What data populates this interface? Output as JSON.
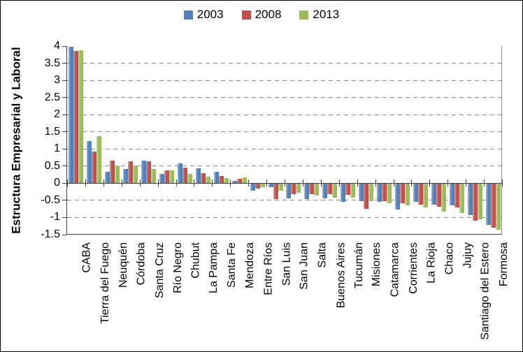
{
  "figure": {
    "background": "#ffffff",
    "border_color": "#000000"
  },
  "legend": {
    "position": "top-center",
    "items": [
      {
        "label": "2003",
        "color": "#4F81BD"
      },
      {
        "label": "2008",
        "color": "#C0504D"
      },
      {
        "label": "2013",
        "color": "#9BBB59"
      }
    ]
  },
  "y_axis": {
    "title": "Estructura Empresarial y Laboral",
    "tick_labels": [
      "4",
      "3.5",
      "3",
      "2.5",
      "2",
      "1.5",
      "1",
      "0.5",
      "0",
      "-0.5",
      "-1",
      "-1.5"
    ]
  },
  "chart_data": {
    "type": "bar",
    "title": "",
    "xlabel": "",
    "ylabel": "Estructura Empresarial y Laboral",
    "ylim": [
      -1.5,
      4
    ],
    "ytick_step": 0.5,
    "grid": "horizontal-dashed",
    "legend_position": "top center",
    "x_labels_rotation": -90,
    "categories": [
      "CABA",
      "Tierra del Fuego",
      "Neuquén",
      "Córdoba",
      "Santa Cruz",
      "Río Negro",
      "Chubut",
      "La Pampa",
      "Santa Fe",
      "Mendoza",
      "Entre Ríos",
      "San Luis",
      "San Juan",
      "Salta",
      "Buenos Aires",
      "Tucumán",
      "Misiones",
      "Catamarca",
      "Corrientes",
      "La Rioja",
      "Chaco",
      "Jujuy",
      "Santiago del Estero",
      "Formosa"
    ],
    "series": [
      {
        "name": "2003",
        "color": "#4F81BD",
        "values": [
          3.98,
          1.22,
          0.34,
          0.41,
          0.66,
          0.28,
          0.57,
          0.43,
          0.33,
          0.07,
          -0.2,
          -0.09,
          -0.43,
          -0.45,
          -0.43,
          -0.53,
          -0.5,
          -0.52,
          -0.75,
          -0.52,
          -0.6,
          -0.63,
          -0.9,
          -1.2
        ]
      },
      {
        "name": "2008",
        "color": "#C0504D",
        "values": [
          3.85,
          0.92,
          0.66,
          0.64,
          0.64,
          0.38,
          0.45,
          0.29,
          0.21,
          0.12,
          -0.13,
          -0.44,
          -0.29,
          -0.29,
          -0.3,
          -0.32,
          -0.72,
          -0.5,
          -0.57,
          -0.6,
          -0.67,
          -0.68,
          -1.07,
          -1.27
        ]
      },
      {
        "name": "2013",
        "color": "#9BBB59",
        "values": [
          3.87,
          1.38,
          0.52,
          0.51,
          0.42,
          0.38,
          0.27,
          0.19,
          0.15,
          0.17,
          -0.1,
          -0.2,
          -0.26,
          -0.34,
          -0.41,
          -0.4,
          -0.5,
          -0.56,
          -0.62,
          -0.69,
          -0.8,
          -0.84,
          -1.03,
          -1.33
        ]
      }
    ]
  }
}
